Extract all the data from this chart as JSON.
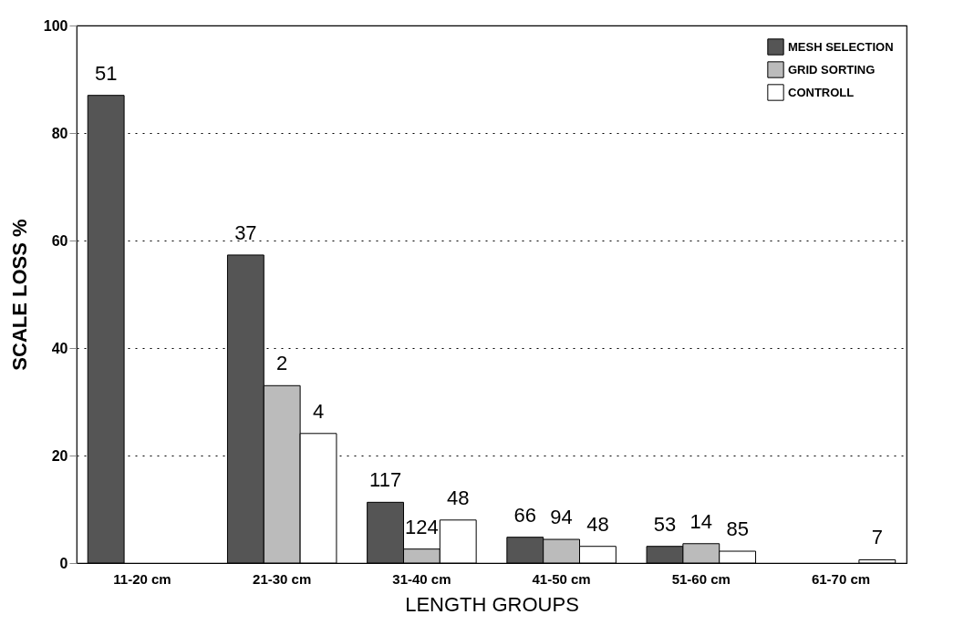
{
  "chart_data": {
    "type": "bar",
    "xlabel": "LENGTH GROUPS",
    "ylabel": "SCALE LOSS %",
    "categories": [
      "11-20 cm",
      "21-30 cm",
      "31-40 cm",
      "41-50 cm",
      "51-60 cm",
      "61-70 cm"
    ],
    "series": [
      {
        "name": "MESH SELECTION",
        "color": "#555555",
        "values": [
          87,
          57.3,
          11.3,
          4.8,
          3.1,
          null
        ]
      },
      {
        "name": "GRID SORTING",
        "color": "#bbbbbb",
        "values": [
          null,
          33,
          2.6,
          4.4,
          3.6,
          null
        ]
      },
      {
        "name": "CONTROLL",
        "color": "#ffffff",
        "values": [
          null,
          24.1,
          8,
          3.1,
          2.2,
          0.6
        ]
      }
    ],
    "annotations": [
      "51",
      "37",
      "2",
      "4",
      "117",
      "124",
      "48",
      "66",
      "94",
      "48",
      "53",
      "14",
      "85",
      "7"
    ],
    "ylim": [
      0,
      100
    ],
    "yticks": [
      0,
      20,
      40,
      60,
      80,
      100
    ],
    "grid": "y",
    "legend": "top right"
  }
}
